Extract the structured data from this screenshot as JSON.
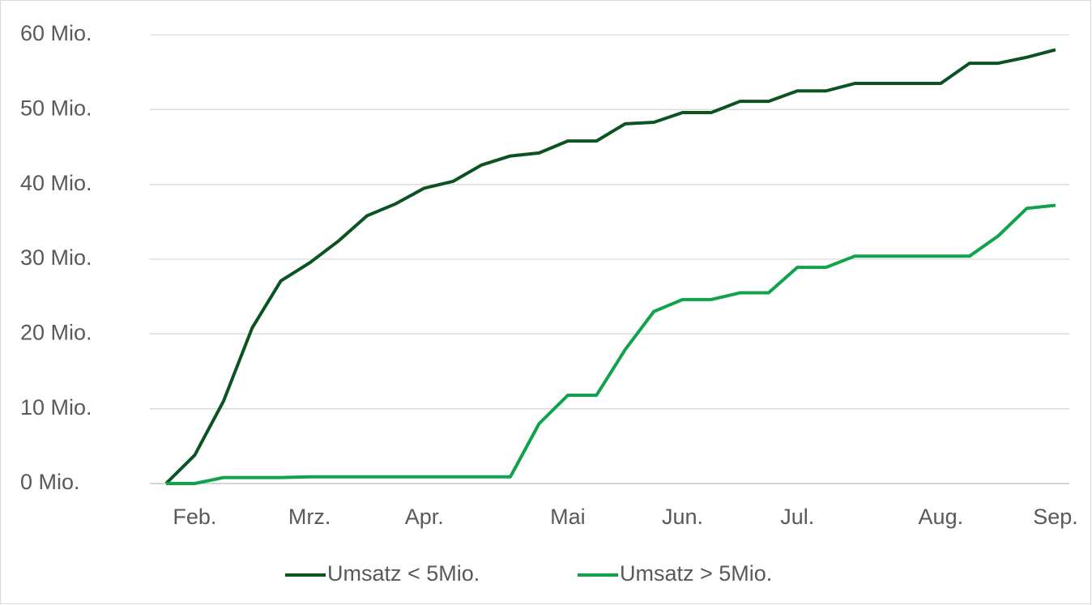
{
  "chart_data": {
    "type": "line",
    "categories": [
      null,
      "Feb.",
      null,
      null,
      null,
      "Mrz.",
      null,
      null,
      null,
      "Apr.",
      null,
      null,
      null,
      null,
      "Mai",
      null,
      null,
      null,
      "Jun.",
      null,
      null,
      null,
      "Jul.",
      null,
      null,
      null,
      null,
      "Aug.",
      null,
      null,
      null,
      "Sep."
    ],
    "series": [
      {
        "name": "Umsatz < 5Mio.",
        "color": "#0b5323",
        "values": [
          0,
          3.8,
          11,
          20.8,
          27.1,
          29.5,
          32.4,
          35.8,
          37.4,
          39.5,
          40.4,
          42.6,
          43.8,
          44.2,
          45.8,
          45.8,
          48.1,
          48.3,
          49.6,
          49.6,
          51.1,
          51.1,
          52.5,
          52.5,
          53.5,
          53.5,
          53.5,
          53.5,
          56.2,
          56.2,
          57,
          58
        ]
      },
      {
        "name": "Umsatz > 5Mio.",
        "color": "#10a34b",
        "values": [
          0,
          0,
          0.8,
          0.8,
          0.8,
          0.9,
          0.9,
          0.9,
          0.9,
          0.9,
          0.9,
          0.9,
          0.9,
          8,
          11.8,
          11.8,
          17.9,
          23,
          24.6,
          24.6,
          25.5,
          25.5,
          28.9,
          28.9,
          30.4,
          30.4,
          30.4,
          30.4,
          30.4,
          33.1,
          36.8,
          37.2
        ]
      }
    ],
    "ylim": [
      0,
      60
    ],
    "yticks": [
      {
        "value": 0,
        "label": "0 Mio."
      },
      {
        "value": 10,
        "label": "10 Mio."
      },
      {
        "value": 20,
        "label": "20 Mio."
      },
      {
        "value": 30,
        "label": "30 Mio."
      },
      {
        "value": 40,
        "label": "40 Mio."
      },
      {
        "value": 50,
        "label": "50 Mio."
      },
      {
        "value": 60,
        "label": "60 Mio."
      }
    ],
    "grid": true,
    "legend": "bottom"
  }
}
